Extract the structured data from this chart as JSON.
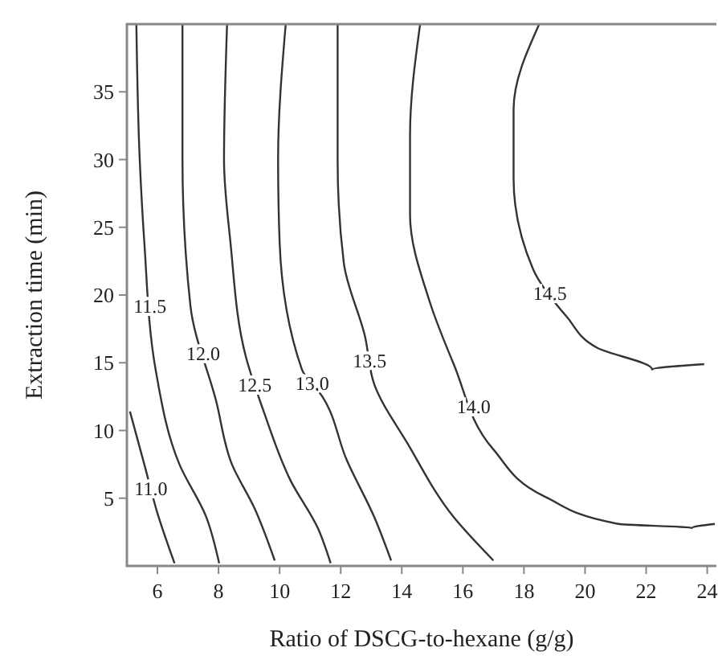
{
  "chart_data": {
    "type": "line",
    "xlabel": "Ratio of DSCG-to-hexane (g/g)",
    "ylabel": "Extraction time (min)",
    "xlim": [
      5,
      24.3
    ],
    "ylim": [
      0,
      40
    ],
    "xticks": [
      6,
      8,
      10,
      12,
      14,
      16,
      18,
      20,
      22,
      24
    ],
    "yticks": [
      5,
      10,
      15,
      20,
      25,
      30,
      35
    ],
    "grid": false,
    "legend": false,
    "series": [
      {
        "name": "11.0",
        "color": "#333333",
        "x": [
          5.1,
          5.57,
          6.0,
          6.56
        ],
        "values": [
          11.4,
          7.5,
          3.9,
          0.2
        ]
      },
      {
        "name": "11.5",
        "color": "#333333",
        "x": [
          5.31,
          5.42,
          5.57,
          5.94,
          6.72,
          7.6,
          8.02
        ],
        "values": [
          40,
          30,
          23.9,
          14.5,
          7.5,
          3.6,
          0.2
        ]
      },
      {
        "name": "12.0",
        "color": "#333333",
        "x": [
          6.82,
          6.82,
          7.08,
          7.92,
          8.44,
          9.17,
          9.84
        ],
        "values": [
          40,
          30,
          19.2,
          12.2,
          7.5,
          4.3,
          0.4
        ]
      },
      {
        "name": "12.5",
        "color": "#333333",
        "x": [
          8.28,
          8.18,
          8.39,
          8.9,
          9.48,
          10.36,
          11.25,
          11.67
        ],
        "values": [
          40,
          30,
          23.9,
          15.4,
          11.4,
          6.3,
          2.8,
          0.2
        ]
      },
      {
        "name": "13.0",
        "color": "#333333",
        "x": [
          10.2,
          9.95,
          10.0,
          10.73,
          11.4,
          12.2,
          13.1,
          13.65
        ],
        "values": [
          40,
          30,
          23.9,
          14.5,
          12.5,
          7.8,
          3.6,
          0.4
        ]
      },
      {
        "name": "13.5",
        "color": "#333333",
        "x": [
          11.9,
          11.9,
          12.1,
          12.8,
          13.1,
          14.2,
          15.7,
          17.0
        ],
        "values": [
          40,
          29.8,
          22.4,
          16.9,
          13.4,
          9.0,
          3.6,
          0.4
        ]
      },
      {
        "name": "14.0",
        "color": "#333333",
        "x": [
          14.6,
          14.27,
          14.27,
          14.9,
          15.7,
          17.0,
          18.7,
          21.1,
          23.5,
          24.25
        ],
        "values": [
          40,
          31.8,
          25.9,
          19.6,
          14.9,
          8.6,
          5.1,
          3.1,
          2.8,
          3.1
        ]
      },
      {
        "name": "14.5",
        "color": "#333333",
        "x": [
          18.5,
          17.66,
          17.66,
          18.3,
          19.4,
          20.4,
          22.2,
          23.9
        ],
        "values": [
          40,
          33.7,
          28.6,
          21.9,
          18.4,
          16.1,
          14.5,
          14.9
        ]
      }
    ]
  }
}
